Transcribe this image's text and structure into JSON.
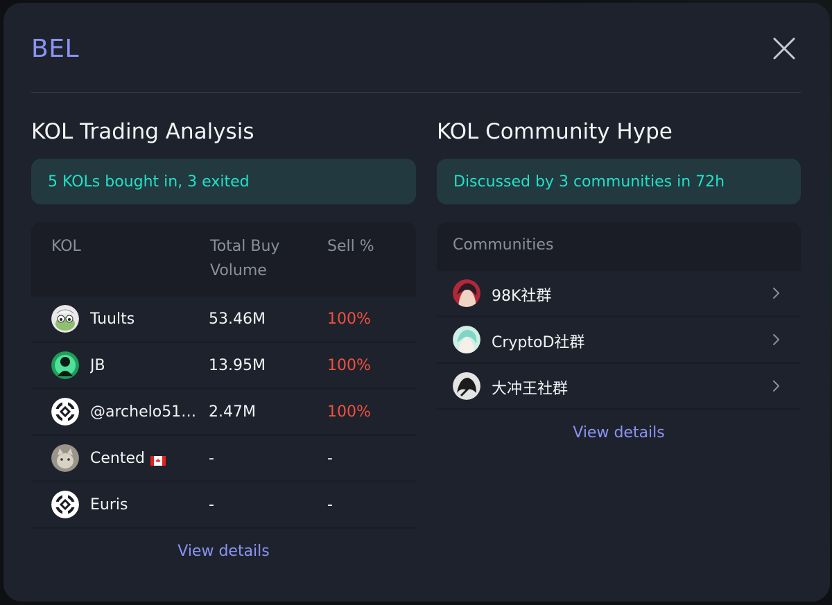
{
  "modal": {
    "title": "BEL"
  },
  "trading": {
    "section_title": "KOL Trading Analysis",
    "banner": "5 KOLs bought in, 3 exited",
    "headers": {
      "kol": "KOL",
      "volume": "Total Buy Volume",
      "sell": "Sell %"
    },
    "rows": [
      {
        "name": "Tuults",
        "volume": "53.46M",
        "sell": "100%",
        "avatar_icon": "frog-avatar-icon"
      },
      {
        "name": "JB",
        "volume": "13.95M",
        "sell": "100%",
        "avatar_icon": "green-figure-avatar-icon"
      },
      {
        "name": "@archelo51…",
        "volume": "2.47M",
        "sell": "100%",
        "avatar_icon": "default-logo-avatar-icon"
      },
      {
        "name": "Cented",
        "volume": "-",
        "sell": "-",
        "avatar_icon": "cat-avatar-icon",
        "flag": "canada-flag-icon"
      },
      {
        "name": "Euris",
        "volume": "-",
        "sell": "-",
        "avatar_icon": "default-logo-avatar-icon"
      }
    ],
    "view_details": "View details"
  },
  "community": {
    "section_title": "KOL Community Hype",
    "banner": "Discussed by 3 communities in 72h",
    "header": "Communities",
    "rows": [
      {
        "name": "98K社群",
        "avatar_icon": "anime-red-avatar-icon"
      },
      {
        "name": "CryptoD社群",
        "avatar_icon": "anime-teal-avatar-icon"
      },
      {
        "name": "大冲王社群",
        "avatar_icon": "mono-avatar-icon"
      }
    ],
    "view_details": "View details"
  },
  "colors": {
    "accent": "#8b93f5",
    "banner_text": "#22e0c8",
    "sell_red": "#f0503e",
    "modal_bg": "#1e222c"
  }
}
